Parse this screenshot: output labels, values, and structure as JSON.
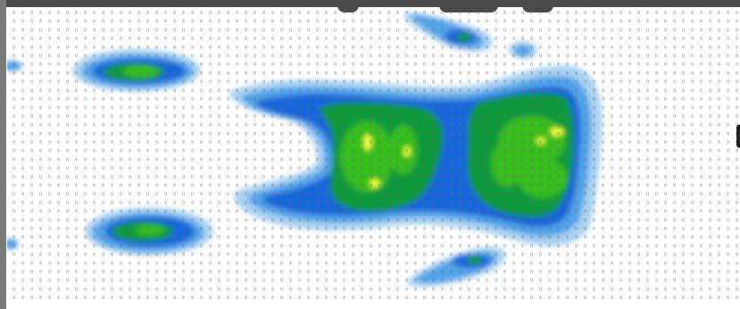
{
  "window": {
    "title": ""
  },
  "heatmap": {
    "grid": {
      "columns": 82,
      "rows": 34,
      "default_value": "0"
    },
    "palette": {
      "background": "#ffffff",
      "level1": "#a8d2f2",
      "level2": "#4fa3ea",
      "level3": "#1666dc",
      "level4": "#0f9a3a",
      "level5": "#36be1c",
      "level6": "#e7ff3b"
    },
    "blobs": [
      {
        "name": "top-left-cluster",
        "level": 4
      },
      {
        "name": "main-left-cluster",
        "level": 5
      },
      {
        "name": "main-right-cluster",
        "level": 5
      },
      {
        "name": "bottom-left-cluster",
        "level": 4
      },
      {
        "name": "top-center-cluster",
        "level": 3
      },
      {
        "name": "bottom-center-cluster",
        "level": 3
      }
    ]
  },
  "icons": {
    "scroll": "scroll-handle-icon"
  }
}
